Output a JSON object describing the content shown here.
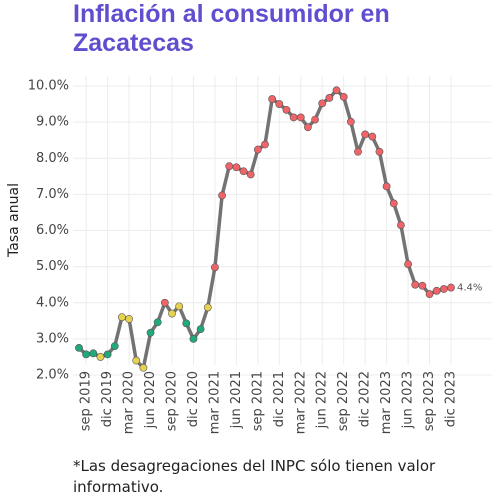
{
  "chart_data": {
    "type": "line",
    "title": "Inflación al consumidor en Zacatecas",
    "y_label": "Tasa anual",
    "footnote": "*Las desagregaciones del INPC sólo tienen valor informativo.",
    "categories": [
      null,
      "sep 2019",
      null,
      null,
      "dic 2019",
      null,
      null,
      "mar 2020",
      null,
      null,
      "jun 2020",
      null,
      null,
      "sep 2020",
      null,
      null,
      "dic 2020",
      null,
      null,
      "mar 2021",
      null,
      null,
      "jun 2021",
      null,
      null,
      "sep 2021",
      null,
      null,
      "dic 2021",
      null,
      null,
      "mar 2022",
      null,
      null,
      "jun 2022",
      null,
      null,
      "sep 2022",
      null,
      null,
      "dic 2022",
      null,
      null,
      "mar 2023",
      null,
      null,
      "jun 2023",
      null,
      null,
      "sep 2023",
      null,
      null,
      "dic 2023"
    ],
    "values": [
      2.75,
      2.57,
      2.6,
      2.5,
      2.57,
      2.8,
      3.6,
      3.55,
      2.4,
      2.2,
      3.17,
      3.46,
      4.0,
      3.7,
      3.9,
      3.43,
      3.0,
      3.27,
      3.87,
      4.98,
      6.97,
      7.78,
      7.75,
      7.64,
      7.55,
      8.24,
      8.38,
      9.64,
      9.5,
      9.34,
      9.13,
      9.13,
      8.86,
      9.07,
      9.52,
      9.67,
      9.88,
      9.7,
      9.01,
      8.18,
      8.66,
      8.6,
      8.18,
      7.22,
      6.75,
      6.15,
      5.07,
      4.5,
      4.47,
      4.24,
      4.33,
      4.38,
      4.42
    ],
    "value_labels": [
      null,
      null,
      null,
      null,
      null,
      null,
      null,
      null,
      null,
      null,
      null,
      null,
      null,
      null,
      null,
      null,
      null,
      null,
      null,
      null,
      null,
      null,
      null,
      null,
      null,
      null,
      null,
      null,
      null,
      null,
      null,
      null,
      null,
      null,
      null,
      null,
      null,
      null,
      null,
      null,
      null,
      null,
      null,
      null,
      null,
      null,
      null,
      null,
      null,
      null,
      null,
      null,
      "4.4%"
    ],
    "color": "#737373",
    "point_colors": [
      "#1fa97c",
      "#1fa97c",
      "#1fa97c",
      "#e6d24e",
      "#1fa97c",
      "#1fa97c",
      "#e6d24e",
      "#e6d24e",
      "#e6d24e",
      "#e6d24e",
      "#1fa97c",
      "#1fa97c",
      "#ee6468",
      "#e6d24e",
      "#e6d24e",
      "#1fa97c",
      "#1fa97c",
      "#1fa97c",
      "#e6d24e",
      "#ee6468",
      "#ee6468",
      "#ee6468",
      "#ee6468",
      "#ee6468",
      "#ee6468",
      "#ee6468",
      "#ee6468",
      "#ee6468",
      "#ee6468",
      "#ee6468",
      "#ee6468",
      "#ee6468",
      "#ee6468",
      "#ee6468",
      "#ee6468",
      "#ee6468",
      "#ee6468",
      "#ee6468",
      "#ee6468",
      "#ee6468",
      "#ee6468",
      "#ee6468",
      "#ee6468",
      "#ee6468",
      "#ee6468",
      "#ee6468",
      "#ee6468",
      "#ee6468",
      "#ee6468",
      "#ee6468",
      "#ee6468",
      "#ee6468",
      "#ee6468"
    ],
    "title_color": "#5f4fcf",
    "ylim": [
      2,
      10
    ],
    "yticks": [
      {
        "value": 2,
        "label": "2.0%"
      },
      {
        "value": 3,
        "label": "3.0%"
      },
      {
        "value": 4,
        "label": "4.0%"
      },
      {
        "value": 5,
        "label": "5.0%"
      },
      {
        "value": 6,
        "label": "6.0%"
      },
      {
        "value": 7,
        "label": "7.0%"
      },
      {
        "value": 8,
        "label": "8.0%"
      },
      {
        "value": 9,
        "label": "9.0%"
      },
      {
        "value": 10,
        "label": "10.0%"
      }
    ],
    "grid": true
  }
}
